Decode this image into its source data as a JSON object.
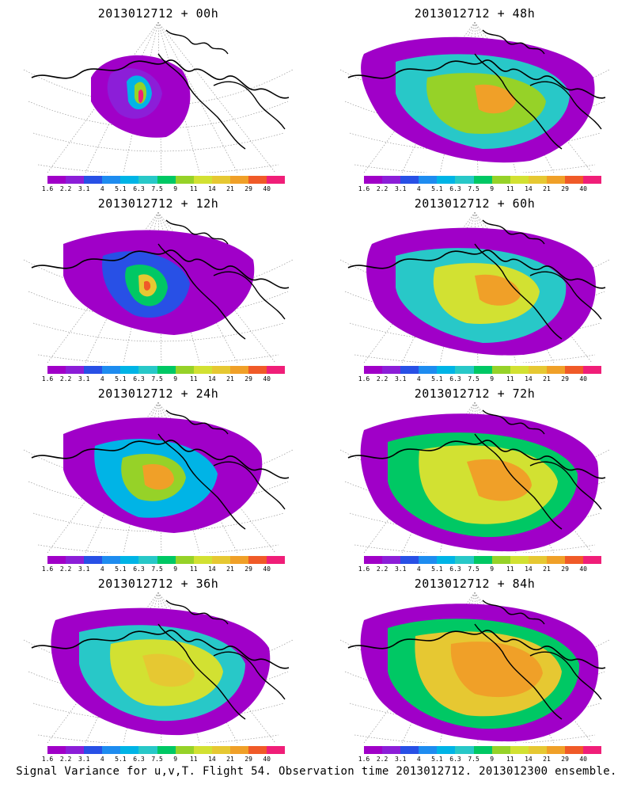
{
  "panels": [
    {
      "title": "2013012712 + 00h"
    },
    {
      "title": "2013012712 + 48h"
    },
    {
      "title": "2013012712 + 12h"
    },
    {
      "title": "2013012712 + 60h"
    },
    {
      "title": "2013012712 + 24h"
    },
    {
      "title": "2013012712 + 72h"
    },
    {
      "title": "2013012712 + 36h"
    },
    {
      "title": "2013012712 + 84h"
    }
  ],
  "colorbar": {
    "labels": [
      "1.6",
      "2.2",
      "3.1",
      "4",
      "5.1",
      "6.3",
      "7.5",
      "9",
      "11",
      "14",
      "21",
      "29",
      "40"
    ],
    "colors": [
      "#a000c8",
      "#8c1ed8",
      "#2850e6",
      "#1e8cf0",
      "#00b4e6",
      "#28c8c8",
      "#00c864",
      "#96d228",
      "#d2e132",
      "#e6c832",
      "#f0a028",
      "#f05a28",
      "#f01e78"
    ]
  },
  "footer": "Signal Variance for u,v,T. Flight 54. Observation time 2013012712. 2013012300 ensemble."
}
